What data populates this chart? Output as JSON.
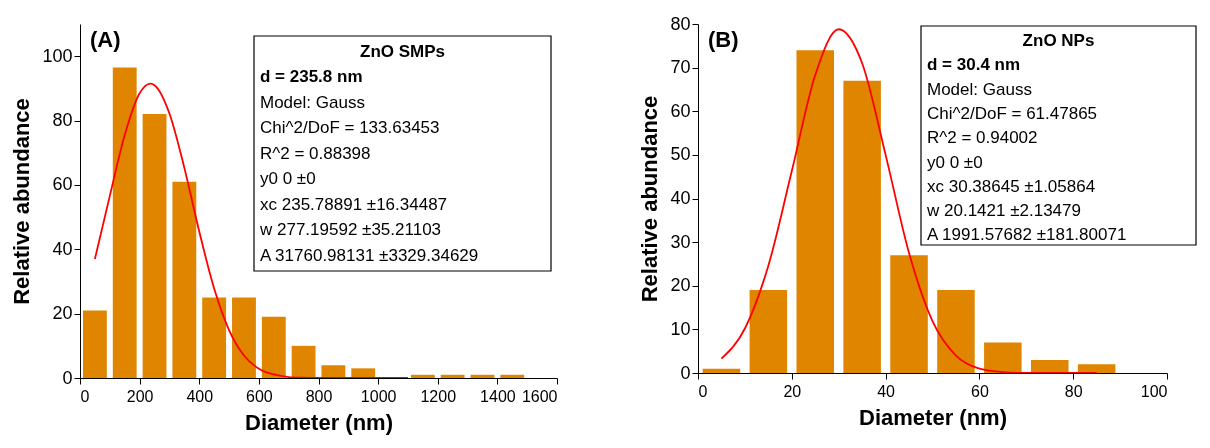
{
  "chart_data": [
    {
      "type": "histogram",
      "title": "(A)",
      "xlabel": "Diameter (nm)",
      "ylabel": "Relative abundance",
      "color": "#df8500",
      "bins": [
        0,
        100,
        200,
        300,
        400,
        500,
        600,
        700,
        800,
        900,
        1000,
        1100,
        1200,
        1300,
        1400,
        1500
      ],
      "values": [
        21,
        96.5,
        82,
        61,
        25,
        25,
        19,
        10,
        4,
        3,
        0,
        1,
        1,
        1,
        1
      ],
      "series": [
        {
          "type": "line",
          "color": "#ff0000",
          "x": [
            50,
            100,
            150,
            200,
            236,
            250,
            300,
            350,
            400,
            450,
            500,
            550,
            600,
            650,
            700,
            750,
            800,
            900,
            1000,
            1100
          ],
          "values": [
            37,
            56.6,
            75.5,
            88.5,
            91.5,
            91,
            82.2,
            65.3,
            45.5,
            27.8,
            14.9,
            7,
            2.9,
            1.1,
            0.3,
            0.1,
            0,
            0,
            0,
            0
          ]
        }
      ],
      "xlim": [
        0,
        1600
      ],
      "xticks": [
        0,
        200,
        400,
        600,
        800,
        1000,
        1200,
        1400,
        1600
      ],
      "ylim": [
        0,
        110
      ],
      "yticks": [
        0,
        20,
        40,
        60,
        80,
        100
      ],
      "grid": false,
      "annotations": [
        "ZnO SMPs",
        "d = 235.8 nm",
        "Model: Gauss",
        "Chi^2/DoF = 133.63453",
        "R^2 = 0.88398",
        "y0 0 ±0",
        "xc 235.78891 ±16.34487",
        "w 277.19592 ±35.21103",
        "A 31760.98131 ±3329.34629"
      ]
    },
    {
      "type": "histogram",
      "title": "(B)",
      "xlabel": "Diameter (nm)",
      "ylabel": "Relative abundance",
      "color": "#df8500",
      "bins": [
        0,
        10,
        20,
        30,
        40,
        50,
        60,
        70,
        80,
        90
      ],
      "values": [
        1,
        19,
        74,
        67,
        27,
        19,
        7,
        3,
        2
      ],
      "series": [
        {
          "type": "line",
          "color": "#ff0000",
          "x": [
            5,
            10,
            15,
            20,
            25,
            30,
            35,
            40,
            45,
            50,
            55,
            60,
            65,
            70,
            75,
            80,
            85
          ],
          "values": [
            3.3,
            10.2,
            24.6,
            46.3,
            68.3,
            78.8,
            71,
            50,
            27.5,
            11.9,
            4,
            1,
            0.2,
            0,
            0,
            0,
            0
          ]
        }
      ],
      "xlim": [
        0,
        100
      ],
      "xticks": [
        0,
        20,
        40,
        60,
        80,
        100
      ],
      "ylim": [
        0,
        80
      ],
      "yticks": [
        0,
        10,
        20,
        30,
        40,
        50,
        60,
        70,
        80
      ],
      "grid": false,
      "annotations": [
        "ZnO NPs",
        "d = 30.4 nm",
        "Model: Gauss",
        "Chi^2/DoF = 61.47865",
        "R^2 = 0.94002",
        "y0 0 ±0",
        "xc 30.38645 ±1.05864",
        "w 20.1421 ±2.13479",
        "A 1991.57682 ±181.80071"
      ]
    }
  ]
}
